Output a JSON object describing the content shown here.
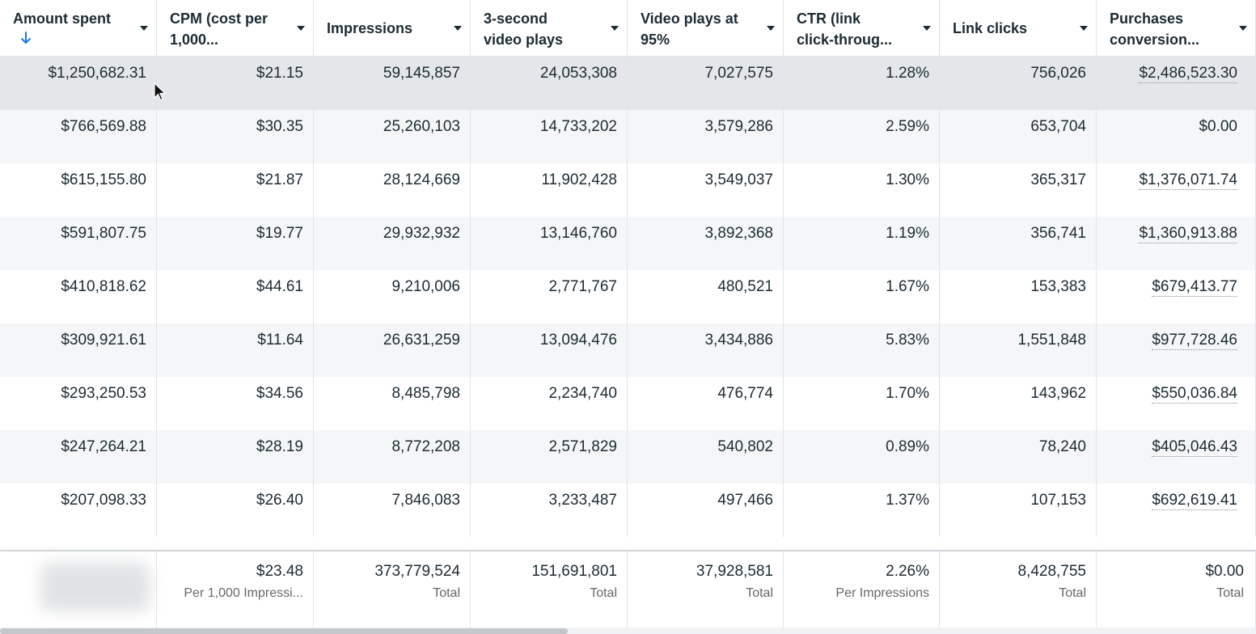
{
  "columns": [
    {
      "label": "Amount spent",
      "sorted": true
    },
    {
      "label": "CPM (cost per\n1,000..."
    },
    {
      "label": "Impressions"
    },
    {
      "label": "3-second\nvideo plays"
    },
    {
      "label": "Video plays at\n95%"
    },
    {
      "label": "CTR (link\nclick-throug..."
    },
    {
      "label": "Link clicks"
    },
    {
      "label": "Purchases\nconversion..."
    }
  ],
  "rows": [
    [
      "$1,250,682.31",
      "$21.15",
      "59,145,857",
      "24,053,308",
      "7,027,575",
      "1.28%",
      "756,026",
      "$2,486,523.30"
    ],
    [
      "$766,569.88",
      "$30.35",
      "25,260,103",
      "14,733,202",
      "3,579,286",
      "2.59%",
      "653,704",
      "$0.00"
    ],
    [
      "$615,155.80",
      "$21.87",
      "28,124,669",
      "11,902,428",
      "3,549,037",
      "1.30%",
      "365,317",
      "$1,376,071.74"
    ],
    [
      "$591,807.75",
      "$19.77",
      "29,932,932",
      "13,146,760",
      "3,892,368",
      "1.19%",
      "356,741",
      "$1,360,913.88"
    ],
    [
      "$410,818.62",
      "$44.61",
      "9,210,006",
      "2,771,767",
      "480,521",
      "1.67%",
      "153,383",
      "$679,413.77"
    ],
    [
      "$309,921.61",
      "$11.64",
      "26,631,259",
      "13,094,476",
      "3,434,886",
      "5.83%",
      "1,551,848",
      "$977,728.46"
    ],
    [
      "$293,250.53",
      "$34.56",
      "8,485,798",
      "2,234,740",
      "476,774",
      "1.70%",
      "143,962",
      "$550,036.84"
    ],
    [
      "$247,264.21",
      "$28.19",
      "8,772,208",
      "2,571,829",
      "540,802",
      "0.89%",
      "78,240",
      "$405,046.43"
    ],
    [
      "$207,098.33",
      "$26.40",
      "7,846,083",
      "3,233,487",
      "497,466",
      "1.37%",
      "107,153",
      "$692,619.41"
    ]
  ],
  "footer": [
    {
      "value": "",
      "sub": ""
    },
    {
      "value": "$23.48",
      "sub": "Per 1,000 Impressi..."
    },
    {
      "value": "373,779,524",
      "sub": "Total"
    },
    {
      "value": "151,691,801",
      "sub": "Total"
    },
    {
      "value": "37,928,581",
      "sub": "Total"
    },
    {
      "value": "2.26%",
      "sub": "Per Impressions"
    },
    {
      "value": "8,428,755",
      "sub": "Total"
    },
    {
      "value": "$0.00",
      "sub": "Total"
    }
  ],
  "colors": {
    "sort_arrow": "#1877f2",
    "text": "#1c2b33",
    "subtext": "#65676b",
    "hover_row": "#e4e6e9",
    "alt_row": "#f5f6f7"
  },
  "icons": {
    "sort": "arrow-down-icon",
    "column_menu": "caret-down-icon",
    "pointer": "mouse-cursor-icon"
  }
}
